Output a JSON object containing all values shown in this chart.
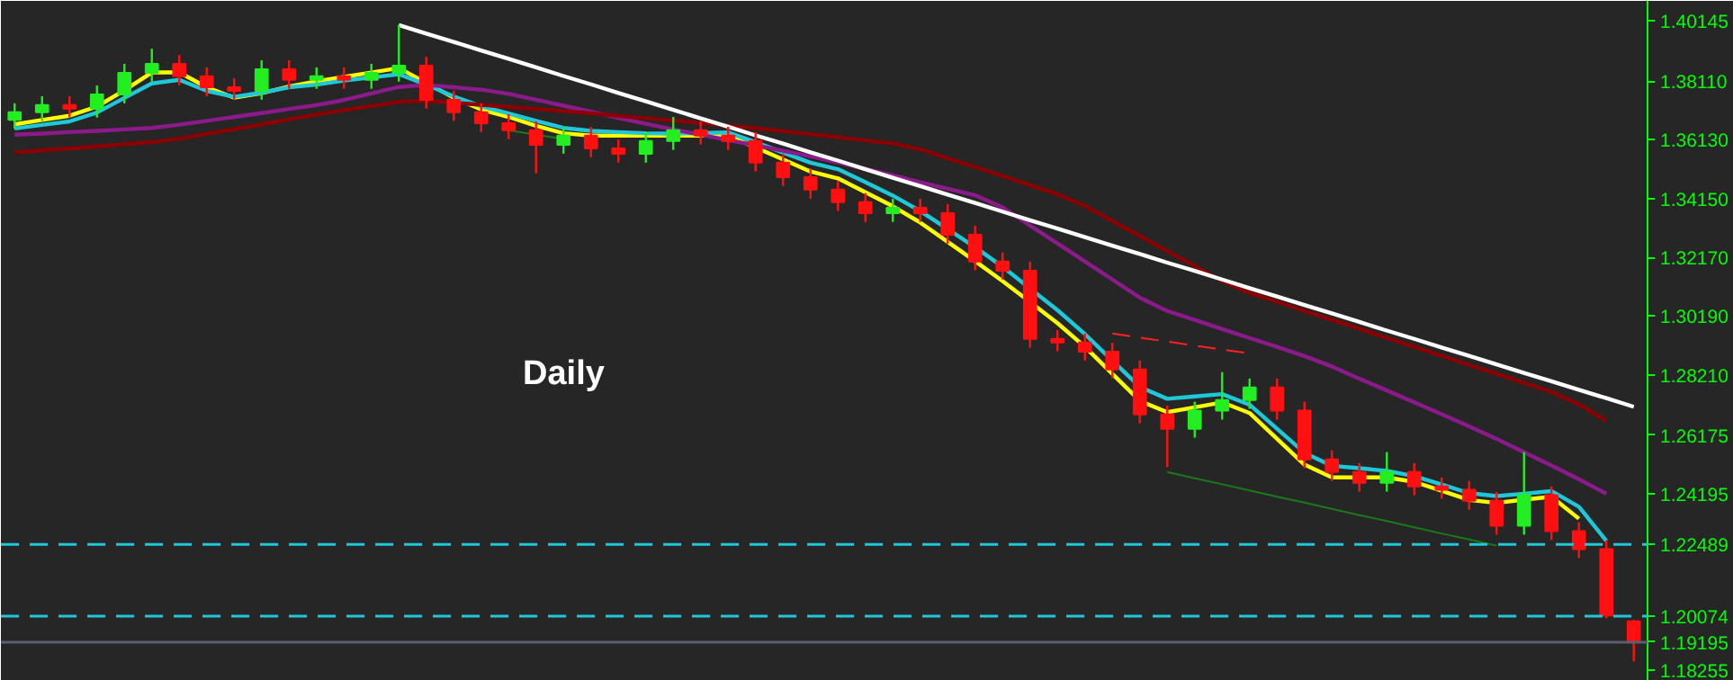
{
  "chart_data": {
    "type": "candlestick",
    "annotations": [
      "Daily"
    ],
    "tick_labels": "y",
    "categories": [
      null,
      null,
      null,
      null,
      null,
      null,
      null,
      null,
      null,
      null,
      null,
      null,
      null,
      null,
      null,
      null,
      null,
      null,
      null,
      null,
      null,
      null,
      null,
      null,
      null,
      null,
      null,
      null,
      null,
      null,
      null,
      null,
      null,
      null,
      null,
      null,
      null,
      null,
      null,
      null,
      null,
      null,
      null,
      null,
      null,
      null,
      null,
      null,
      null,
      null,
      null,
      null,
      null,
      null,
      null,
      null,
      null,
      null,
      null,
      null
    ],
    "ohlc": [
      [
        1.368,
        1.3736,
        1.365,
        1.3706
      ],
      [
        1.3706,
        1.376,
        1.3676,
        1.373
      ],
      [
        1.373,
        1.376,
        1.3688,
        1.3718
      ],
      [
        1.3718,
        1.3796,
        1.3688,
        1.3766
      ],
      [
        1.3766,
        1.3869,
        1.3736,
        1.3839
      ],
      [
        1.3839,
        1.392,
        1.3809,
        1.3869
      ],
      [
        1.3869,
        1.3899,
        1.3797,
        1.3827
      ],
      [
        1.3827,
        1.3857,
        1.376,
        1.379
      ],
      [
        1.379,
        1.382,
        1.3748,
        1.3778
      ],
      [
        1.3778,
        1.3881,
        1.3748,
        1.3851
      ],
      [
        1.3851,
        1.3881,
        1.3785,
        1.3815
      ],
      [
        1.3815,
        1.3857,
        1.3785,
        1.3827
      ],
      [
        1.3827,
        1.3857,
        1.3785,
        1.3815
      ],
      [
        1.3815,
        1.3869,
        1.3785,
        1.3839
      ],
      [
        1.3839,
        1.4,
        1.3809,
        1.3863
      ],
      [
        1.3863,
        1.3893,
        1.3718,
        1.3748
      ],
      [
        1.3748,
        1.3778,
        1.3676,
        1.3706
      ],
      [
        1.3706,
        1.3736,
        1.3639,
        1.3669
      ],
      [
        1.3669,
        1.3699,
        1.3615,
        1.3645
      ],
      [
        1.3645,
        1.3675,
        1.35,
        1.3596
      ],
      [
        1.3596,
        1.3657,
        1.3566,
        1.3627
      ],
      [
        1.3627,
        1.3657,
        1.3554,
        1.3584
      ],
      [
        1.3584,
        1.3614,
        1.3536,
        1.3566
      ],
      [
        1.3566,
        1.3639,
        1.3536,
        1.3609
      ],
      [
        1.3609,
        1.369,
        1.3579,
        1.3645
      ],
      [
        1.3645,
        1.3675,
        1.3597,
        1.3627
      ],
      [
        1.3627,
        1.3657,
        1.3579,
        1.3609
      ],
      [
        1.3609,
        1.3639,
        1.3506,
        1.3536
      ],
      [
        1.3536,
        1.3566,
        1.3457,
        1.3487
      ],
      [
        1.3487,
        1.3517,
        1.3415,
        1.3445
      ],
      [
        1.3445,
        1.3475,
        1.3373,
        1.3403
      ],
      [
        1.3403,
        1.3433,
        1.3336,
        1.3366
      ],
      [
        1.3366,
        1.3414,
        1.3336,
        1.3384
      ],
      [
        1.3384,
        1.3414,
        1.3336,
        1.3366
      ],
      [
        1.3366,
        1.3396,
        1.3263,
        1.3293
      ],
      [
        1.3293,
        1.3323,
        1.3173,
        1.3203
      ],
      [
        1.3203,
        1.3233,
        1.3142,
        1.3172
      ],
      [
        1.3172,
        1.3202,
        1.2912,
        1.2942
      ],
      [
        1.2942,
        1.2972,
        1.29,
        1.293
      ],
      [
        1.293,
        1.296,
        1.2869,
        1.2899
      ],
      [
        1.2899,
        1.2929,
        1.2809,
        1.2839
      ],
      [
        1.2839,
        1.2869,
        1.2657,
        1.2687
      ],
      [
        1.2687,
        1.2717,
        1.251,
        1.2639
      ],
      [
        1.2639,
        1.273,
        1.2609,
        1.27
      ],
      [
        1.27,
        1.283,
        1.267,
        1.2736
      ],
      [
        1.2736,
        1.2808,
        1.2706,
        1.2778
      ],
      [
        1.2778,
        1.2808,
        1.267,
        1.27
      ],
      [
        1.27,
        1.273,
        1.2506,
        1.2536
      ],
      [
        1.2536,
        1.2566,
        1.2463,
        1.2493
      ],
      [
        1.2493,
        1.2523,
        1.2427,
        1.2457
      ],
      [
        1.2457,
        1.256,
        1.2427,
        1.2493
      ],
      [
        1.2493,
        1.2523,
        1.2415,
        1.2445
      ],
      [
        1.2445,
        1.2475,
        1.2403,
        1.2433
      ],
      [
        1.2433,
        1.2463,
        1.2366,
        1.2396
      ],
      [
        1.2396,
        1.2426,
        1.2282,
        1.2312
      ],
      [
        1.2312,
        1.256,
        1.2282,
        1.2415
      ],
      [
        1.2415,
        1.2445,
        1.2264,
        1.2294
      ],
      [
        1.2294,
        1.2324,
        1.2203,
        1.2233
      ],
      [
        1.2233,
        1.2263,
        1.2,
        1.201
      ],
      [
        1.199,
        1.1995,
        1.1855,
        1.192
      ]
    ],
    "series": [
      {
        "type": "line",
        "color": "#ffff00",
        "values": [
          1.3665,
          1.368,
          1.3694,
          1.3725,
          1.378,
          1.384,
          1.384,
          1.379,
          1.3755,
          1.377,
          1.3793,
          1.381,
          1.3825,
          1.384,
          1.3855,
          1.3805,
          1.3755,
          1.3715,
          1.369,
          1.366,
          1.3635,
          1.3627,
          1.3627,
          1.3627,
          1.3627,
          1.3627,
          1.3627,
          1.3587,
          1.3547,
          1.3506,
          1.3483,
          1.3436,
          1.3389,
          1.3334,
          1.3269,
          1.3204,
          1.3137,
          1.3066,
          1.2995,
          1.2915,
          1.2824,
          1.2733,
          1.2695,
          1.2711,
          1.2728,
          1.2692,
          1.2605,
          1.2518,
          1.2475,
          1.2475,
          1.2475,
          1.246,
          1.243,
          1.2399,
          1.2389,
          1.24,
          1.241,
          1.2336,
          null,
          null
        ]
      },
      {
        "type": "line",
        "color": "#1fc8d8",
        "values": [
          1.3651,
          1.3663,
          1.3675,
          1.3705,
          1.3754,
          1.3803,
          1.3815,
          1.3778,
          1.3758,
          1.3772,
          1.379,
          1.3799,
          1.3813,
          1.3823,
          1.3834,
          1.3799,
          1.3759,
          1.3726,
          1.3702,
          1.3677,
          1.3653,
          1.3643,
          1.3639,
          1.3635,
          1.3634,
          1.3636,
          1.3638,
          1.3605,
          1.357,
          1.3536,
          1.3514,
          1.347,
          1.3425,
          1.3373,
          1.3312,
          1.3251,
          1.3185,
          1.3112,
          1.3039,
          1.2958,
          1.2869,
          1.278,
          1.274,
          1.2748,
          1.2756,
          1.272,
          1.2639,
          1.2558,
          1.2514,
          1.2506,
          1.2497,
          1.2479,
          1.2451,
          1.2422,
          1.2412,
          1.242,
          1.2429,
          1.2376,
          1.2261,
          null
        ]
      },
      {
        "type": "line",
        "color": "#8b1a8b",
        "values": [
          1.363,
          1.3634,
          1.3639,
          1.3643,
          1.3648,
          1.3653,
          1.3664,
          1.3677,
          1.369,
          1.3703,
          1.3717,
          1.373,
          1.3747,
          1.3769,
          1.3791,
          1.3798,
          1.379,
          1.3782,
          1.3768,
          1.3748,
          1.3728,
          1.3708,
          1.3687,
          1.3667,
          1.3648,
          1.363,
          1.3612,
          1.3594,
          1.3576,
          1.3557,
          1.3537,
          1.3515,
          1.3493,
          1.347,
          1.3448,
          1.3426,
          1.3385,
          1.3324,
          1.3264,
          1.3203,
          1.3142,
          1.3081,
          1.3036,
          1.3006,
          1.2975,
          1.2945,
          1.2915,
          1.2884,
          1.2849,
          1.2808,
          1.2768,
          1.2728,
          1.2688,
          1.2647,
          1.2605,
          1.256,
          1.2515,
          1.2469,
          1.242,
          null
        ]
      },
      {
        "type": "line",
        "color": "#8b0000",
        "values": [
          1.357,
          1.3577,
          1.3584,
          1.3591,
          1.3598,
          1.3605,
          1.3617,
          1.3633,
          1.3649,
          1.3665,
          1.3682,
          1.3698,
          1.3713,
          1.3727,
          1.3741,
          1.3745,
          1.3738,
          1.3731,
          1.3724,
          1.3717,
          1.371,
          1.3702,
          1.3694,
          1.3686,
          1.3678,
          1.3669,
          1.3661,
          1.3652,
          1.3642,
          1.3632,
          1.3622,
          1.3611,
          1.3601,
          1.3581,
          1.3551,
          1.3521,
          1.3491,
          1.346,
          1.343,
          1.339,
          1.3339,
          1.3289,
          1.3238,
          1.3188,
          1.3137,
          1.3097,
          1.3067,
          1.3036,
          1.3006,
          1.2976,
          1.2945,
          1.2915,
          1.2885,
          1.2854,
          1.2824,
          1.2794,
          1.2763,
          1.2721,
          1.2666,
          null
        ]
      },
      {
        "type": "line",
        "color": "#ffffff",
        "values": [
          null,
          null,
          null,
          null,
          null,
          null,
          null,
          null,
          null,
          null,
          null,
          null,
          null,
          null,
          1.4,
          1.3971,
          1.3943,
          1.3914,
          1.3886,
          1.3857,
          1.3828,
          1.38,
          1.3771,
          1.3743,
          1.3714,
          1.3685,
          1.3657,
          1.3628,
          1.36,
          1.3571,
          1.3543,
          1.3514,
          1.3485,
          1.3457,
          1.3428,
          1.34,
          1.3371,
          1.3342,
          1.3314,
          1.3285,
          1.3256,
          1.3228,
          1.3199,
          1.3171,
          1.3142,
          1.3113,
          1.3085,
          1.3056,
          1.3028,
          1.2999,
          1.297,
          1.2942,
          1.2913,
          1.2885,
          1.2856,
          1.2827,
          1.2799,
          1.277,
          1.2742,
          1.2713
        ]
      },
      {
        "type": "line",
        "color": "#1a7a1a",
        "values": [
          null,
          null,
          null,
          null,
          null,
          null,
          null,
          null,
          null,
          null,
          null,
          null,
          null,
          null,
          null,
          null,
          null,
          null,
          1.3645,
          1.363,
          1.3616,
          null,
          null,
          null,
          null,
          null,
          null,
          null,
          null,
          null,
          null,
          null,
          null,
          null,
          null,
          null,
          null,
          null,
          null,
          null,
          null,
          null,
          null,
          null,
          null,
          null,
          null,
          null,
          null,
          null,
          null,
          null,
          null,
          null,
          null,
          null,
          null,
          null,
          null,
          null
        ]
      },
      {
        "type": "line",
        "color": "#1a7a1a",
        "values": [
          null,
          null,
          null,
          null,
          null,
          null,
          null,
          null,
          null,
          null,
          null,
          null,
          null,
          null,
          null,
          null,
          null,
          null,
          null,
          null,
          null,
          null,
          null,
          null,
          null,
          null,
          null,
          null,
          null,
          null,
          null,
          null,
          null,
          null,
          null,
          null,
          null,
          null,
          null,
          null,
          null,
          null,
          1.2493,
          1.2472,
          1.2452,
          1.2431,
          1.241,
          1.239,
          1.2369,
          1.2348,
          1.2328,
          1.2307,
          1.2286,
          1.2266,
          1.2245,
          null,
          null,
          null,
          null,
          null
        ]
      },
      {
        "type": "line",
        "color": "#ff2020",
        "line_style": "dashed",
        "values": [
          null,
          null,
          null,
          null,
          null,
          null,
          null,
          null,
          null,
          null,
          null,
          null,
          null,
          null,
          null,
          null,
          null,
          null,
          null,
          null,
          null,
          null,
          null,
          null,
          null,
          null,
          null,
          null,
          null,
          null,
          null,
          null,
          null,
          null,
          null,
          null,
          null,
          null,
          null,
          null,
          1.296,
          1.2946,
          1.2933,
          1.2919,
          1.2906,
          1.2893,
          null,
          null,
          null,
          null,
          null,
          null,
          null,
          null,
          null,
          null,
          null,
          null,
          null,
          null
        ]
      }
    ],
    "ylim": [
      1.17891,
      1.40812
    ],
    "yticks": [
      1.40145,
      {
        "value": 1.3811,
        "label": "1.38110"
      },
      {
        "value": 1.3613,
        "label": "1.36130"
      },
      {
        "value": 1.3415,
        "label": "1.34150"
      },
      {
        "value": 1.3217,
        "label": "1.32170"
      },
      {
        "value": 1.3019,
        "label": "1.30190"
      },
      {
        "value": 1.2821,
        "label": "1.28210"
      },
      1.26175,
      1.24195,
      1.18255
    ],
    "ref_lines": [
      {
        "axis": "y",
        "value": 1.22489,
        "label": "1.22489",
        "color": "#1fc8d8",
        "line_style": "dashed"
      },
      {
        "axis": "y",
        "value": 1.20074,
        "label": "1.20074",
        "color": "#1fc8d8",
        "line_style": "dashed"
      },
      {
        "axis": "y",
        "value": 1.19195,
        "label": "1.19195",
        "color": "#5a6070",
        "line_style": "solid"
      }
    ]
  }
}
